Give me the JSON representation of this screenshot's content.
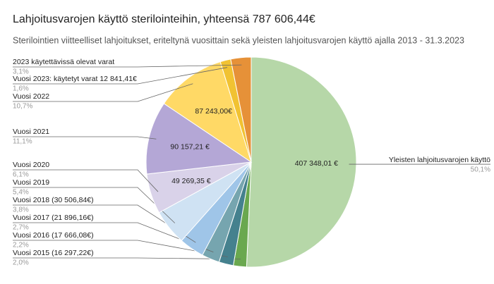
{
  "chart_data": {
    "type": "pie",
    "title": "Lahjoitusvarojen käyttö sterilointeihin, yhteensä 787 606,44€",
    "subtitle": "Sterilointien viitteelliset lahjoitukset, eriteltynä vuosittain sekä yleisten lahjoitusvarojen käyttö ajalla 2013 - 31.3.2023",
    "categories": [
      "Yleisten lahjoitusvarojen käyttö",
      "Vuosi 2015 (16 297,22€)",
      "Vuosi 2016 (17 666,08€)",
      "Vuosi 2017 (21 896,16€)",
      "Vuosi 2018 (30 506,84€)",
      "Vuosi 2019",
      "Vuosi 2020",
      "Vuosi 2021",
      "Vuosi 2022",
      "Vuosi 2023: käytetyt varat 12 841,41€",
      "2023 käytettävissä olevat varat"
    ],
    "values": [
      50.1,
      2.0,
      2.2,
      2.7,
      3.8,
      5.4,
      6.1,
      11.1,
      10.7,
      1.6,
      3.1
    ],
    "value_labels": [
      "50,1%",
      "2,0%",
      "2,2%",
      "2,7%",
      "3,8%",
      "5,4%",
      "6,1%",
      "11,1%",
      "10,7%",
      "1,6%",
      "3,1%"
    ],
    "inner_labels": [
      "407 348,01 €",
      null,
      null,
      null,
      null,
      null,
      "49 269,35 €",
      "90 157,21 €",
      "87 243,00€",
      null,
      null
    ],
    "colors": [
      "#b6d7a8",
      "#6aa84f",
      "#45818e",
      "#76a5af",
      "#9fc5e8",
      "#cfe2f3",
      "#d9d2e9",
      "#b4a7d6",
      "#ffd966",
      "#f1c232",
      "#e69138"
    ]
  }
}
